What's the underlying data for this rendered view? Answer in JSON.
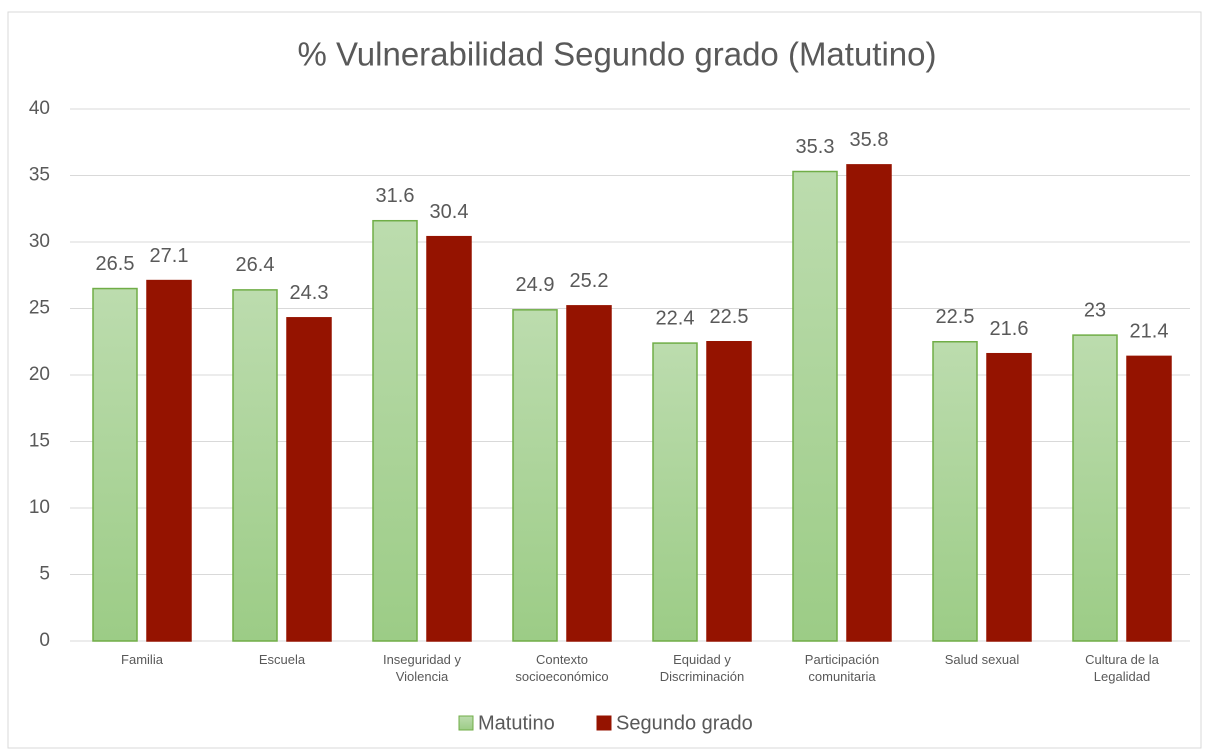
{
  "chart_data": {
    "type": "bar",
    "title": "% Vulnerabilidad Segundo grado (Matutino)",
    "categories": [
      "Familia",
      "Escuela",
      "Inseguridad y Violencia",
      "Contexto socioeconómico",
      "Equidad y Discriminación",
      "Participación comunitaria",
      "Salud sexual",
      "Cultura de la Legalidad"
    ],
    "series": [
      {
        "name": "Matutino",
        "color": "#a9d18e",
        "values": [
          26.5,
          26.4,
          31.6,
          24.9,
          22.4,
          35.3,
          22.5,
          23
        ]
      },
      {
        "name": "Segundo grado",
        "color": "#951300",
        "values": [
          27.1,
          24.3,
          30.4,
          25.2,
          22.5,
          35.8,
          21.6,
          21.4
        ]
      }
    ],
    "ylim": [
      0,
      40
    ],
    "yticks": [
      0,
      5,
      10,
      15,
      20,
      25,
      30,
      35,
      40
    ],
    "grid": true,
    "legend": "bottom"
  }
}
